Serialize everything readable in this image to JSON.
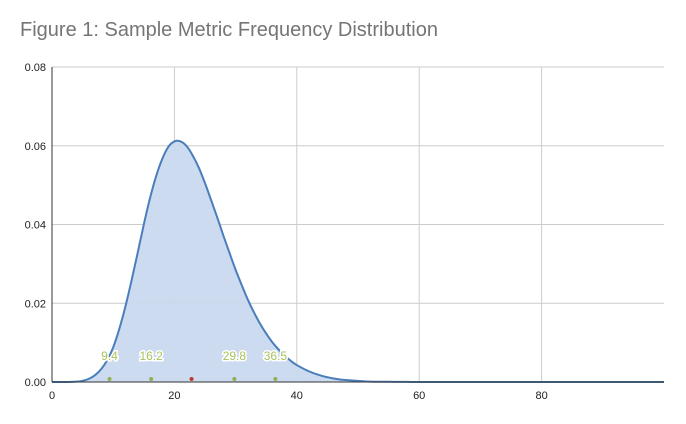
{
  "chart_data": {
    "type": "area",
    "title": "Figure 1: Sample Metric Frequency Distribution",
    "xlabel": "",
    "ylabel": "",
    "xlim": [
      0,
      100
    ],
    "ylim": [
      0,
      0.08
    ],
    "x_ticks": [
      0,
      20,
      40,
      60,
      80
    ],
    "x_tick_labels": [
      "0",
      "20",
      "40",
      "60",
      "80"
    ],
    "y_ticks": [
      0,
      0.02,
      0.04,
      0.06,
      0.08
    ],
    "y_tick_labels": [
      "0.00",
      "0.02",
      "0.04",
      "0.06",
      "0.08"
    ],
    "grid": true,
    "series": [
      {
        "color": "#4a7ebb",
        "fill": "#c9d9ee",
        "x": [
          0,
          2,
          4,
          5,
          6,
          7,
          8,
          9,
          10,
          11,
          12,
          13,
          14,
          15,
          16,
          17,
          18,
          19,
          20,
          21,
          22,
          23,
          24,
          25,
          26,
          27,
          28,
          29,
          30,
          31,
          32,
          33,
          34,
          35,
          36,
          37,
          38,
          39,
          40,
          42,
          44,
          46,
          48,
          50,
          52,
          55,
          58,
          60,
          65,
          70,
          80,
          90,
          100
        ],
        "y": [
          0,
          0,
          0.0001,
          0.0003,
          0.0008,
          0.0017,
          0.0032,
          0.0055,
          0.0088,
          0.0135,
          0.0192,
          0.0258,
          0.0328,
          0.04,
          0.0466,
          0.0522,
          0.0566,
          0.0597,
          0.0611,
          0.0611,
          0.0599,
          0.0575,
          0.0544,
          0.0505,
          0.0462,
          0.0418,
          0.0372,
          0.0328,
          0.0285,
          0.0246,
          0.0209,
          0.0177,
          0.0148,
          0.0123,
          0.0101,
          0.0083,
          0.0067,
          0.0054,
          0.0043,
          0.0027,
          0.0016,
          0.0009,
          0.0005,
          0.0003,
          0.0001,
          5e-05,
          2e-05,
          0,
          0,
          0,
          0,
          0,
          0
        ]
      }
    ],
    "markers": [
      {
        "x": 9.4,
        "label": "9.4",
        "color": "#8fb04a"
      },
      {
        "x": 16.2,
        "label": "16.2",
        "color": "#8fb04a"
      },
      {
        "x": 22.8,
        "label": "",
        "color": "#c0392b"
      },
      {
        "x": 29.8,
        "label": "29.8",
        "color": "#8fb04a"
      },
      {
        "x": 36.5,
        "label": "36.5",
        "color": "#8fb04a"
      }
    ]
  }
}
